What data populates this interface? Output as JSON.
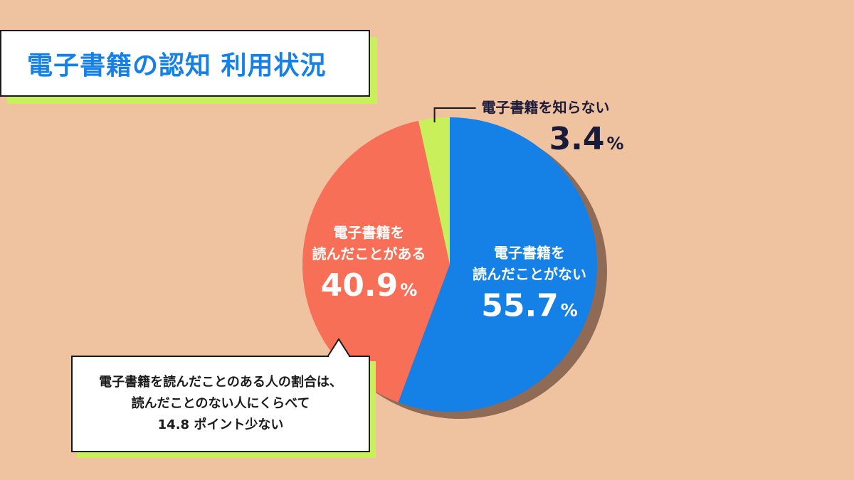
{
  "title": "電子書籍の認知 利用状況",
  "colors": {
    "background": "#f0c3a0",
    "title_text": "#1580e6",
    "accent_shadow": "#c9ef5a"
  },
  "chart_data": {
    "type": "pie",
    "start_angle_deg": 0,
    "direction": "clockwise",
    "slices": [
      {
        "label_lines": [
          "電子書籍を",
          "読んだことがない"
        ],
        "value": 55.7,
        "value_text": "55.7",
        "unit": "%",
        "color": "#1580e6",
        "label_color": "#ffffff",
        "label_position": "inside"
      },
      {
        "label_lines": [
          "電子書籍を",
          "読んだことがある"
        ],
        "value": 40.9,
        "value_text": "40.9",
        "unit": "%",
        "color": "#f76f57",
        "label_color": "#ffffff",
        "label_position": "inside"
      },
      {
        "label_lines": [
          "電子書籍を知らない"
        ],
        "value": 3.4,
        "value_text": "3.4",
        "unit": "%",
        "color": "#c9ef5a",
        "label_color": "#1a1a3a",
        "label_position": "outside-top-right"
      }
    ]
  },
  "callout": {
    "lines": [
      "電子書籍を読んだことのある人の割合は、",
      "読んだことのない人にくらべて",
      "14.8 ポイント少ない"
    ]
  }
}
